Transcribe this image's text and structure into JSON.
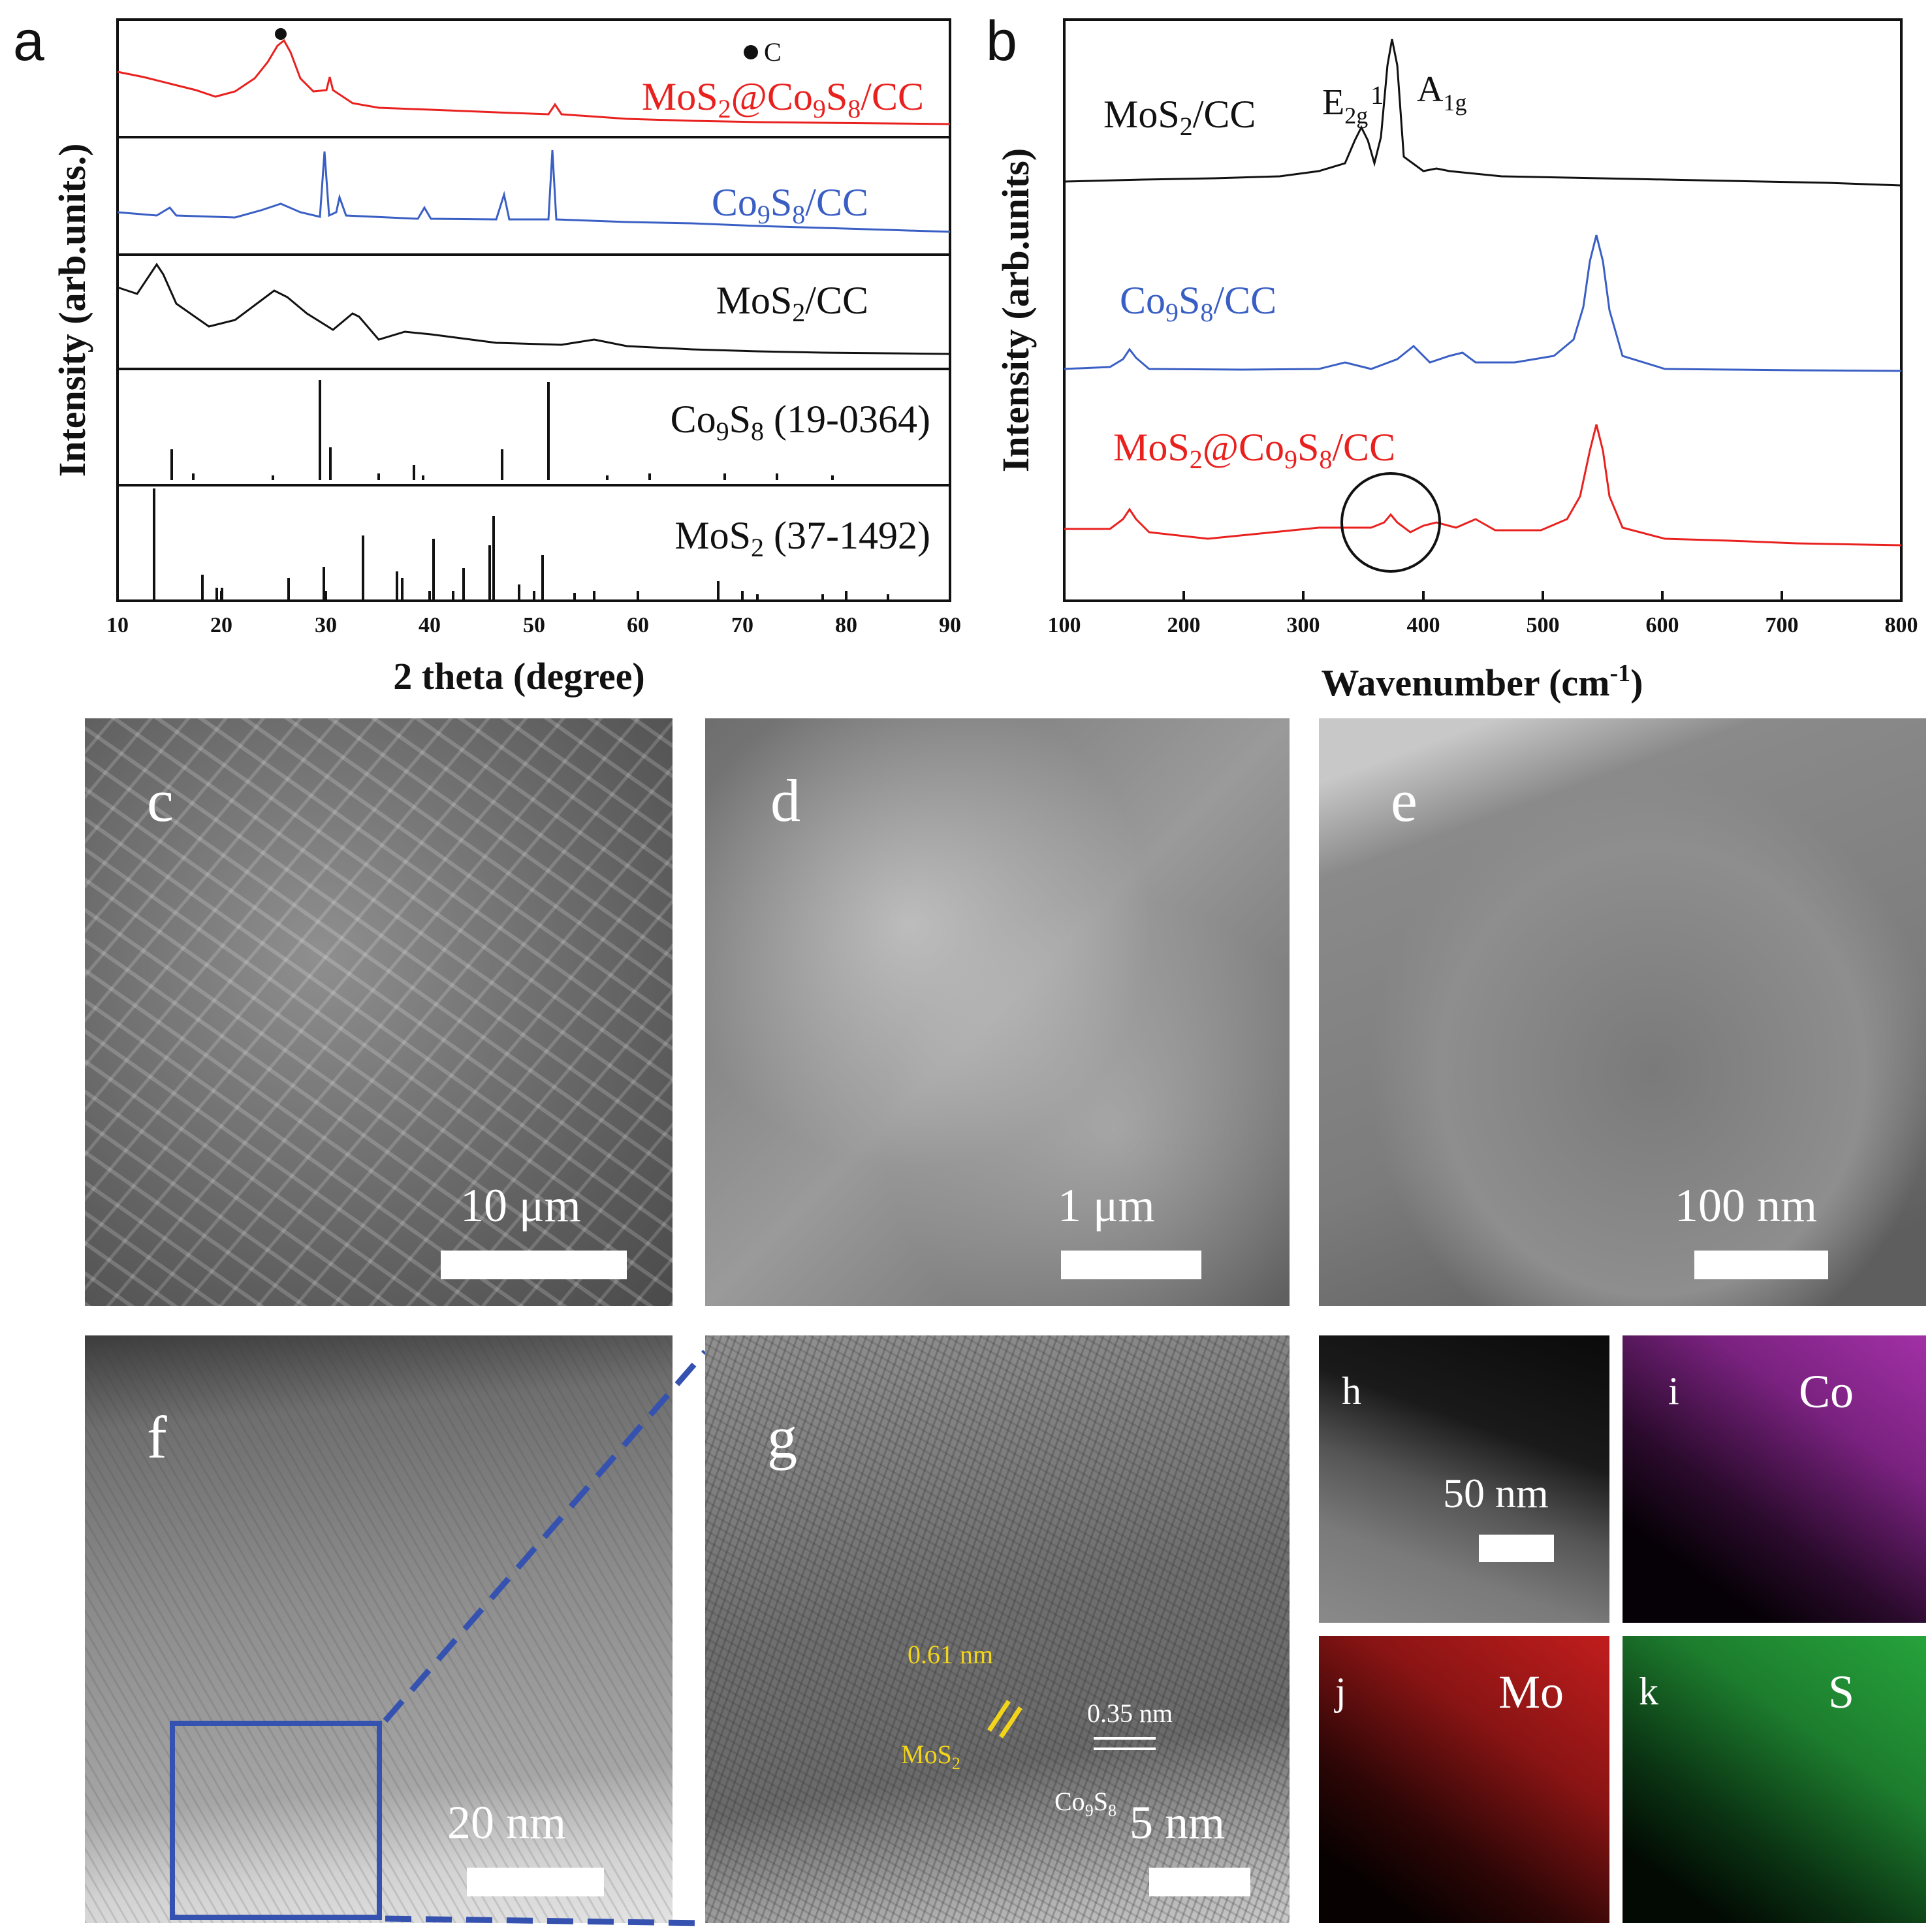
{
  "figure": {
    "panel_a": {
      "letter": "a",
      "ylabel": "Intensity (arb.units.)",
      "xlabel": "2 theta (degree)",
      "xticks": [
        "10",
        "20",
        "30",
        "40",
        "50",
        "60",
        "70",
        "80",
        "90"
      ],
      "marker_legend": "C",
      "traces": [
        {
          "label_parts": [
            "MoS",
            "2",
            "@Co",
            "9",
            "S",
            "8",
            "/CC"
          ],
          "color": "#e8211f"
        },
        {
          "label_parts": [
            "Co",
            "9",
            "S",
            "8",
            "/CC"
          ],
          "color": "#3a5fc4"
        },
        {
          "label_parts": [
            "MoS",
            "2",
            "/CC"
          ],
          "color": "#111111"
        }
      ],
      "references": [
        {
          "label_parts": [
            "Co",
            "9",
            "S",
            "8",
            " (19-0364)"
          ]
        },
        {
          "label_parts": [
            "MoS",
            "2",
            " (37-1492)"
          ]
        }
      ]
    },
    "panel_b": {
      "letter": "b",
      "ylabel": "Intensity (arb.units)",
      "xlabel_main": "Wavenumber (cm",
      "xlabel_sup": "-1",
      "xlabel_end": ")",
      "xticks": [
        "100",
        "200",
        "300",
        "400",
        "500",
        "600",
        "700",
        "800"
      ],
      "peak_e": {
        "base": "E",
        "sub": "2g",
        "sup": "1"
      },
      "peak_a": {
        "base": "A",
        "sub": "1g"
      },
      "traces": [
        {
          "label_parts": [
            "MoS",
            "2",
            "/CC"
          ],
          "color": "#111111"
        },
        {
          "label_parts": [
            "Co",
            "9",
            "S",
            "8",
            "/CC"
          ],
          "color": "#3a5fc4"
        },
        {
          "label_parts": [
            "MoS",
            "2",
            "@Co",
            "9",
            "S",
            "8",
            "/CC"
          ],
          "color": "#e8211f"
        }
      ]
    },
    "micrographs": [
      {
        "letter": "c",
        "scale": "10 μm"
      },
      {
        "letter": "d",
        "scale": "1 μm"
      },
      {
        "letter": "e",
        "scale": "100 nm"
      },
      {
        "letter": "f",
        "scale": "20 nm"
      },
      {
        "letter": "g",
        "scale": "5 nm",
        "annotations": {
          "d1": "0.61 nm",
          "mos2": [
            "MoS",
            "2"
          ],
          "d2": "0.35 nm",
          "co9s8": [
            "Co",
            "9",
            "S",
            "8"
          ]
        }
      },
      {
        "letter": "h",
        "scale": "50 nm"
      },
      {
        "letter": "i",
        "element": "Co"
      },
      {
        "letter": "j",
        "element": "Mo"
      },
      {
        "letter": "k",
        "element": "S"
      }
    ],
    "colors": {
      "red": "#e8211f",
      "blue": "#3a5fc4",
      "black": "#111111",
      "zoom_box": "#3552b0",
      "yellow": "#f2d51a"
    }
  }
}
